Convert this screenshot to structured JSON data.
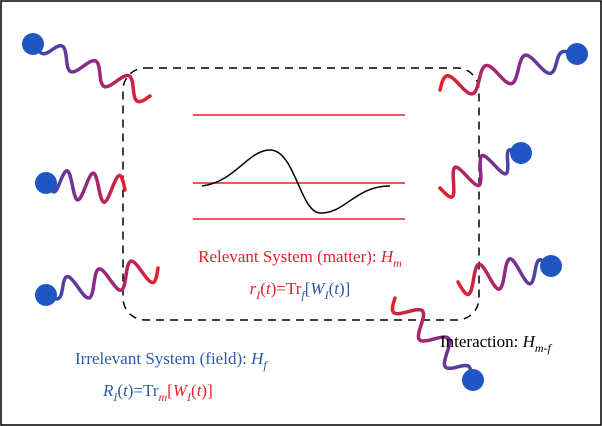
{
  "relevant": {
    "label": [
      {
        "text": "Relevant System (matter): ",
        "color": "#e3202b"
      },
      {
        "text": "H",
        "color": "#e3202b",
        "italic": true
      },
      {
        "text": "m",
        "color": "#e3202b",
        "italic": true,
        "sub": true
      }
    ],
    "equation": [
      {
        "text": "r",
        "color": "#e3202b",
        "italic": true
      },
      {
        "text": "I",
        "color": "#e3202b",
        "italic": true,
        "sub": true
      },
      {
        "text": "(",
        "color": "#e3202b"
      },
      {
        "text": "t",
        "color": "#e3202b",
        "italic": true
      },
      {
        "text": ")=Tr",
        "color": "#e3202b"
      },
      {
        "text": "f",
        "color": "#2b5ba8",
        "italic": true,
        "sub": true
      },
      {
        "text": "[",
        "color": "#2b5ba8"
      },
      {
        "text": "W",
        "color": "#2b5ba8",
        "italic": true
      },
      {
        "text": "I",
        "color": "#2b5ba8",
        "italic": true,
        "sub": true
      },
      {
        "text": "(",
        "color": "#2b5ba8"
      },
      {
        "text": "t",
        "color": "#2b5ba8",
        "italic": true
      },
      {
        "text": ")]",
        "color": "#2b5ba8"
      }
    ]
  },
  "irrelevant": {
    "label": [
      {
        "text": "Irrelevant System (field): ",
        "color": "#2b5ba8"
      },
      {
        "text": "H",
        "color": "#2b5ba8",
        "italic": true
      },
      {
        "text": "f",
        "color": "#2b5ba8",
        "italic": true,
        "sub": true
      }
    ],
    "equation": [
      {
        "text": "R",
        "color": "#2b5ba8",
        "italic": true
      },
      {
        "text": "I",
        "color": "#2b5ba8",
        "italic": true,
        "sub": true
      },
      {
        "text": "(",
        "color": "#2b5ba8"
      },
      {
        "text": "t",
        "color": "#2b5ba8",
        "italic": true
      },
      {
        "text": ")=Tr",
        "color": "#2b5ba8"
      },
      {
        "text": "m",
        "color": "#e3202b",
        "italic": true,
        "sub": true
      },
      {
        "text": "[",
        "color": "#e3202b"
      },
      {
        "text": "W",
        "color": "#e3202b",
        "italic": true
      },
      {
        "text": "I",
        "color": "#e3202b",
        "italic": true,
        "sub": true
      },
      {
        "text": "(",
        "color": "#e3202b"
      },
      {
        "text": "t",
        "color": "#e3202b",
        "italic": true
      },
      {
        "text": ")]",
        "color": "#e3202b"
      }
    ]
  },
  "interaction": {
    "label": [
      {
        "text": "Interaction: ",
        "color": "#000000"
      },
      {
        "text": "H",
        "color": "#000000",
        "italic": true
      },
      {
        "text": "m-f",
        "color": "#000000",
        "italic": true,
        "sub": true
      }
    ]
  }
}
